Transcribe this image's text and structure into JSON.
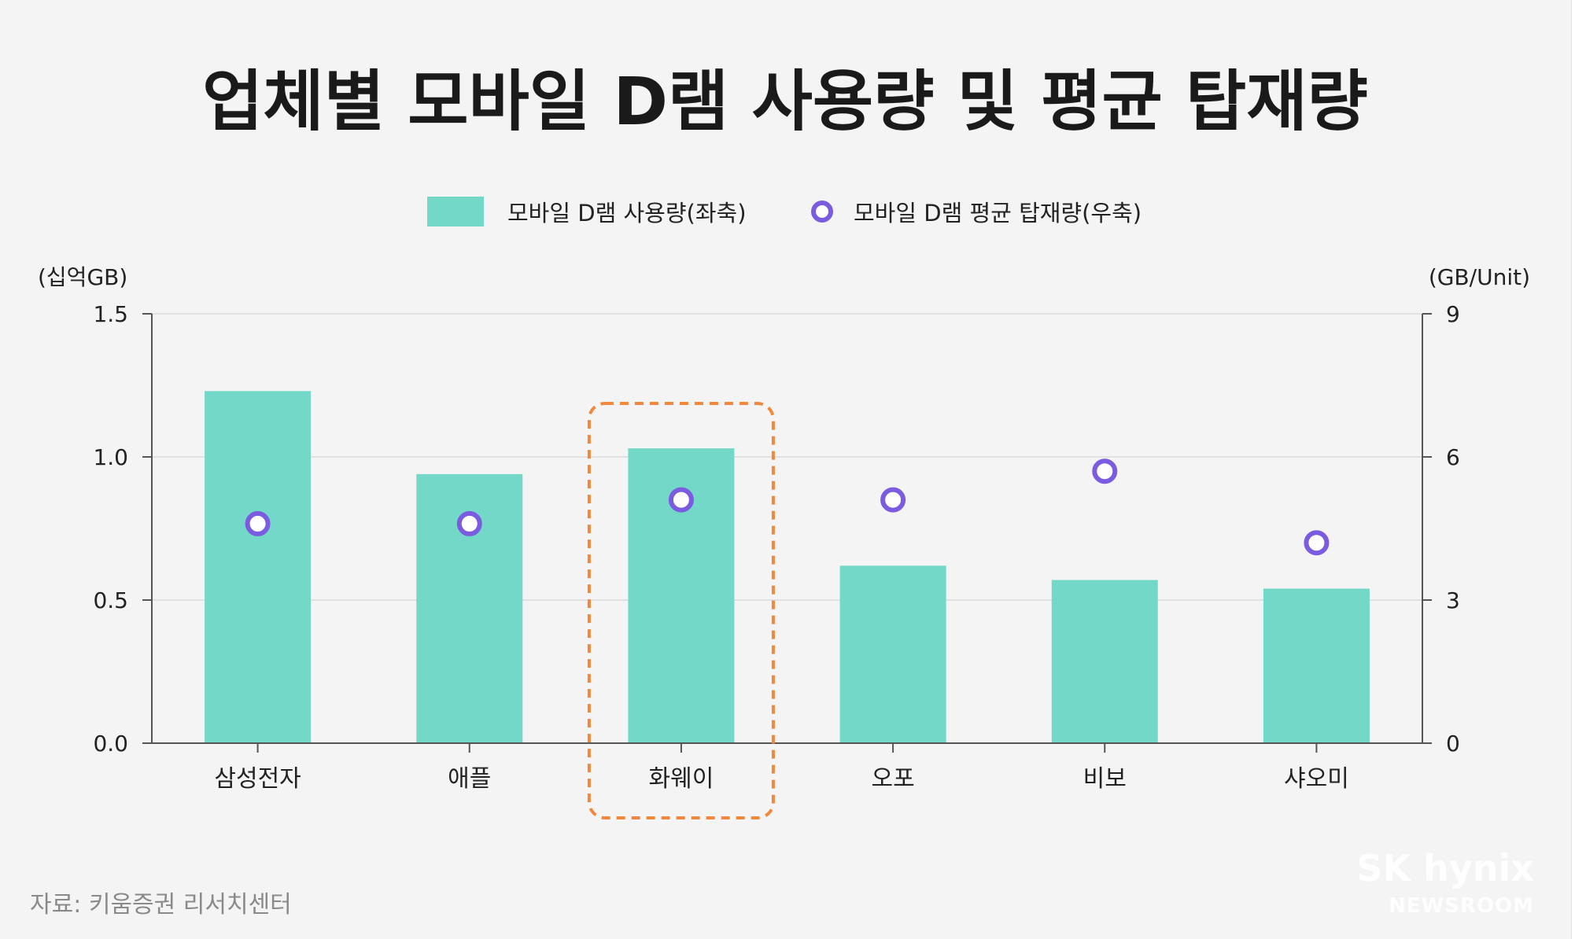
{
  "chart_data": {
    "type": "bar",
    "title": "업체별 모바일 D램 사용량 및 평균 탑재량",
    "categories": [
      "삼성전자",
      "애플",
      "화웨이",
      "오포",
      "비보",
      "샤오미"
    ],
    "series": [
      {
        "name": "모바일 D램 사용량(좌축)",
        "type": "bar",
        "axis": "left",
        "color": "#73d8c8",
        "values": [
          1.23,
          0.94,
          1.03,
          0.62,
          0.57,
          0.54
        ]
      },
      {
        "name": "모바일 D램 평균 탑재량(우축)",
        "type": "scatter",
        "axis": "right",
        "color": "#7b5ce0",
        "values": [
          4.6,
          4.6,
          5.1,
          5.1,
          5.7,
          4.2
        ]
      }
    ],
    "y_left": {
      "unit": "(십억GB)",
      "ylim": [
        0,
        1.5
      ],
      "ticks": [
        "0.0",
        "0.5",
        "1.0",
        "1.5"
      ]
    },
    "y_right": {
      "unit": "(GB/Unit)",
      "ylim": [
        0,
        9
      ],
      "ticks": [
        "0",
        "3",
        "6",
        "9"
      ]
    },
    "highlight": {
      "category": "화웨이",
      "color": "#f0883e"
    },
    "grid": true,
    "legend_position": "top-center"
  },
  "source": "자료: 키움증권 리서치센터",
  "watermark": {
    "brand": "SK hynix",
    "sub": "NEWSROOM"
  }
}
